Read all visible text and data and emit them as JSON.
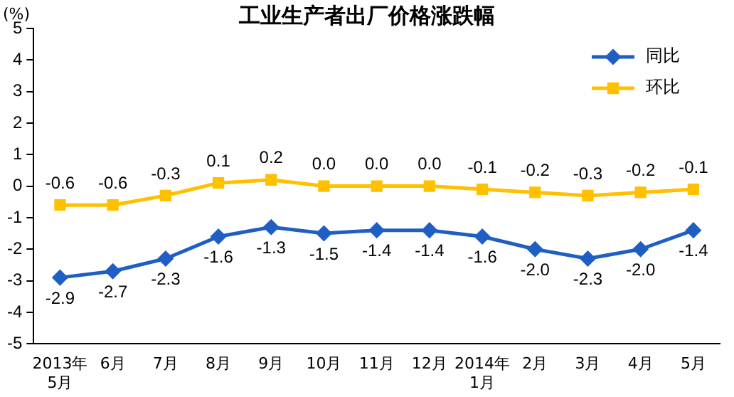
{
  "chart_data": {
    "type": "line",
    "title": "工业生产者出厂价格涨跌幅",
    "ylabel": "(%)",
    "categories": [
      "2013年\n5月",
      "6月",
      "7月",
      "8月",
      "9月",
      "10月",
      "11月",
      "12月",
      "2014年\n1月",
      "2月",
      "3月",
      "4月",
      "5月"
    ],
    "series": [
      {
        "name": "同比",
        "color": "#1f5fc4",
        "marker": "diamond",
        "values": [
          -2.9,
          -2.7,
          -2.3,
          -1.6,
          -1.3,
          -1.5,
          -1.4,
          -1.4,
          -1.6,
          -2.0,
          -2.3,
          -2.0,
          -1.4
        ],
        "value_labels": [
          "-2.9",
          "-2.7",
          "-2.3",
          "-1.6",
          "-1.3",
          "-1.5",
          "-1.4",
          "-1.4",
          "-1.6",
          "-2.0",
          "-2.3",
          "-2.0",
          "-1.4"
        ]
      },
      {
        "name": "环比",
        "color": "#ffc000",
        "marker": "square",
        "values": [
          -0.6,
          -0.6,
          -0.3,
          0.1,
          0.2,
          0.0,
          0.0,
          0.0,
          -0.1,
          -0.2,
          -0.3,
          -0.2,
          -0.1
        ],
        "value_labels": [
          "-0.6",
          "-0.6",
          "-0.3",
          "0.1",
          "0.2",
          "0.0",
          "0.0",
          "0.0",
          "-0.1",
          "-0.2",
          "-0.3",
          "-0.2",
          "-0.1"
        ]
      }
    ],
    "ylim": [
      -5,
      5
    ],
    "yticks": [
      -5,
      -4,
      -3,
      -2,
      -1,
      0,
      1,
      2,
      3,
      4,
      5
    ],
    "grid": false,
    "legend": "top right",
    "line_style": "solid"
  }
}
